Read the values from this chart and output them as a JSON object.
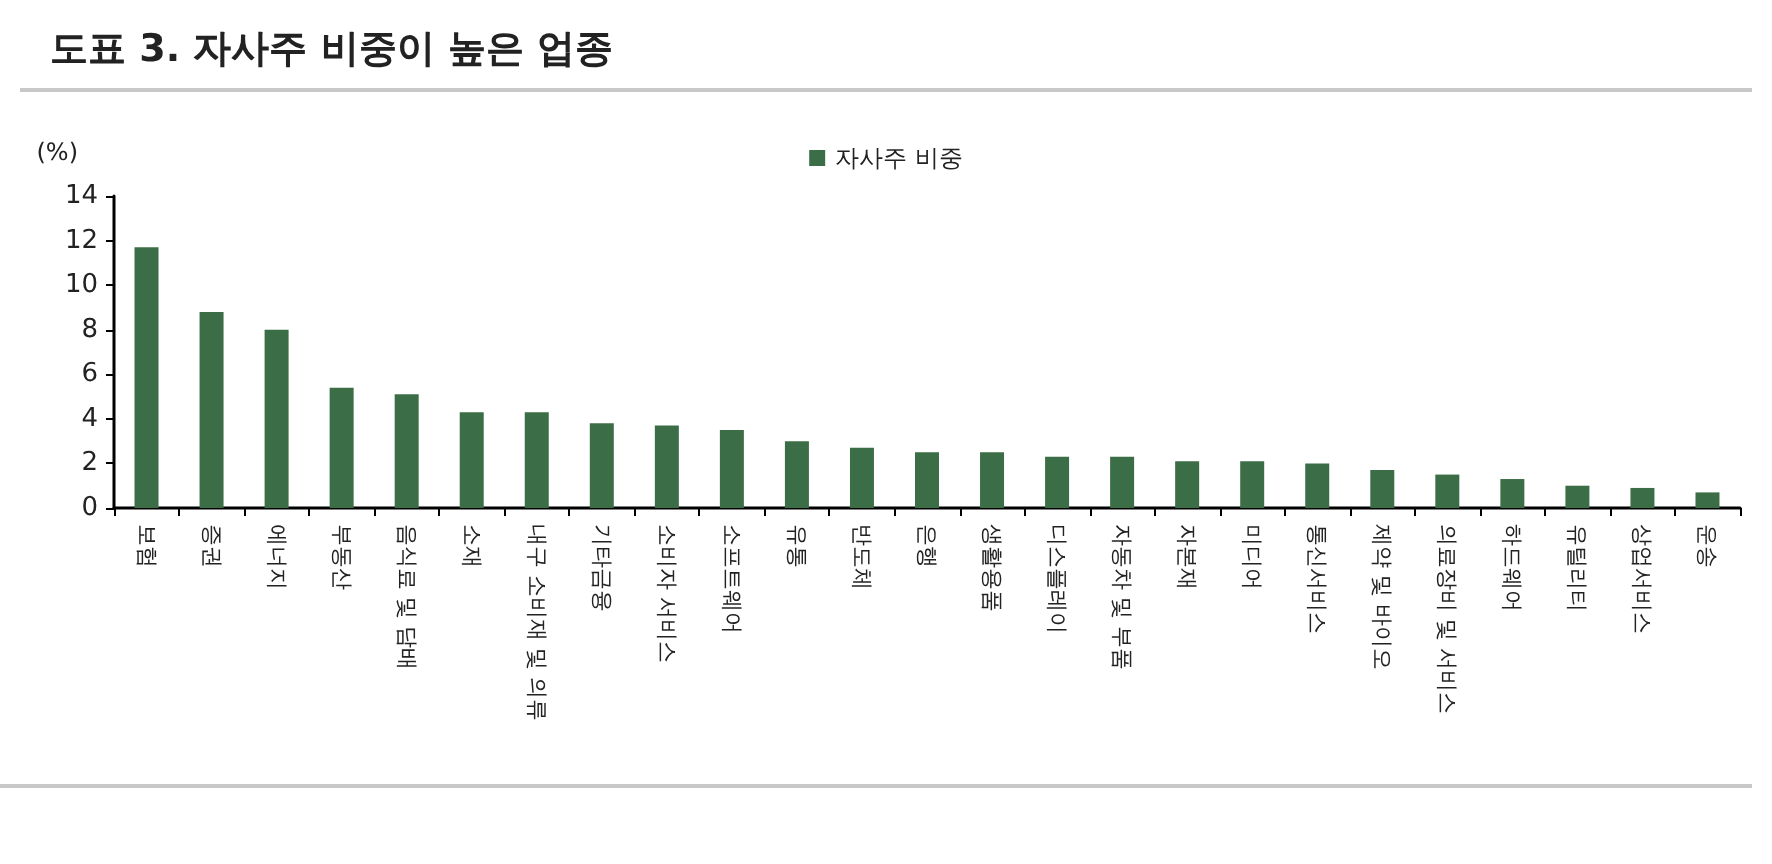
{
  "chart_data": {
    "type": "bar",
    "title": "도표 3. 자사주 비중이 높은 업종",
    "ylabel": "(%)",
    "categories": [
      "보험",
      "증권",
      "에너지",
      "부동산",
      "음식료 및 담배",
      "소재",
      "내구 소비재 및 의류",
      "기타금융",
      "소비자 서비스",
      "소프트웨어",
      "유통",
      "반도체",
      "은행",
      "생활용품",
      "디스플레이",
      "자동차 및 부품",
      "자본재",
      "미디어",
      "통신서비스",
      "제약 및 바이오",
      "의료장비 및 서비스",
      "하드웨어",
      "유틸리티",
      "상업서비스",
      "운송"
    ],
    "series": [
      {
        "name": "자사주 비중",
        "color": "#3b6e46",
        "values": [
          11.7,
          8.8,
          8.0,
          5.4,
          5.1,
          4.3,
          4.3,
          3.8,
          3.7,
          3.5,
          3.0,
          2.7,
          2.5,
          2.5,
          2.3,
          2.3,
          2.1,
          2.1,
          2.0,
          1.7,
          1.5,
          1.3,
          1.0,
          0.9,
          0.7
        ]
      }
    ],
    "ylim": [
      0,
      14
    ],
    "yticks": [
      0,
      2,
      4,
      6,
      8,
      10,
      12,
      14
    ],
    "grid": false,
    "legend": "top"
  }
}
